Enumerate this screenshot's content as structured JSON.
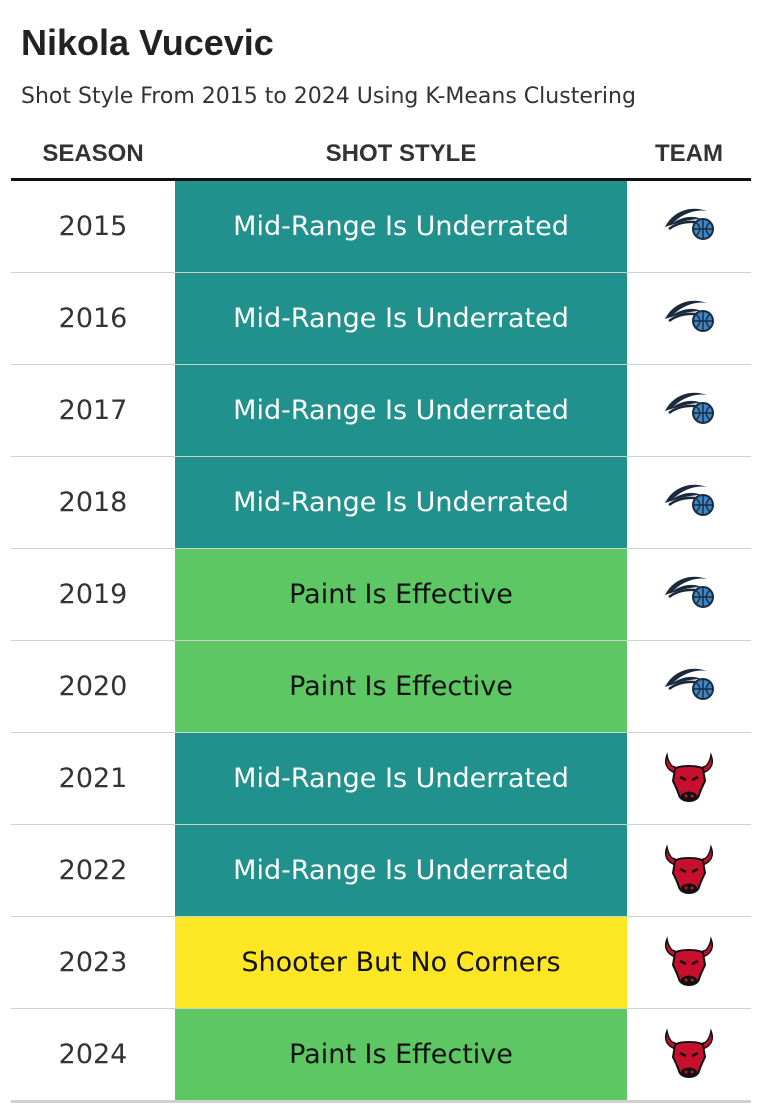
{
  "title": "Nikola Vucevic",
  "subtitle": "Shot Style From 2015 to 2024 Using K-Means Clustering",
  "headers": {
    "season": "SEASON",
    "style": "SHOT STYLE",
    "team": "TEAM"
  },
  "colors": {
    "Mid-Range Is Underrated": {
      "bg": "#20918c",
      "fg": "#ffffff"
    },
    "Paint Is Effective": {
      "bg": "#5dc863",
      "fg": "#111111"
    },
    "Shooter But No Corners": {
      "bg": "#fde725",
      "fg": "#111111"
    }
  },
  "chart_data": {
    "type": "table",
    "title": "Nikola Vucevic",
    "subtitle": "Shot Style From 2015 to 2024 Using K-Means Clustering",
    "columns": [
      "SEASON",
      "SHOT STYLE",
      "TEAM"
    ],
    "rows": [
      {
        "season": "2015",
        "style": "Mid-Range Is Underrated",
        "team_logo": "orlando-magic-logo-icon"
      },
      {
        "season": "2016",
        "style": "Mid-Range Is Underrated",
        "team_logo": "orlando-magic-logo-icon"
      },
      {
        "season": "2017",
        "style": "Mid-Range Is Underrated",
        "team_logo": "orlando-magic-logo-icon"
      },
      {
        "season": "2018",
        "style": "Mid-Range Is Underrated",
        "team_logo": "orlando-magic-logo-icon"
      },
      {
        "season": "2019",
        "style": "Paint Is Effective",
        "team_logo": "orlando-magic-logo-icon"
      },
      {
        "season": "2020",
        "style": "Paint Is Effective",
        "team_logo": "orlando-magic-logo-icon"
      },
      {
        "season": "2021",
        "style": "Mid-Range Is Underrated",
        "team_logo": "chicago-bulls-logo-icon"
      },
      {
        "season": "2022",
        "style": "Mid-Range Is Underrated",
        "team_logo": "chicago-bulls-logo-icon"
      },
      {
        "season": "2023",
        "style": "Shooter But No Corners",
        "team_logo": "chicago-bulls-logo-icon"
      },
      {
        "season": "2024",
        "style": "Paint Is Effective",
        "team_logo": "chicago-bulls-logo-icon"
      }
    ]
  }
}
